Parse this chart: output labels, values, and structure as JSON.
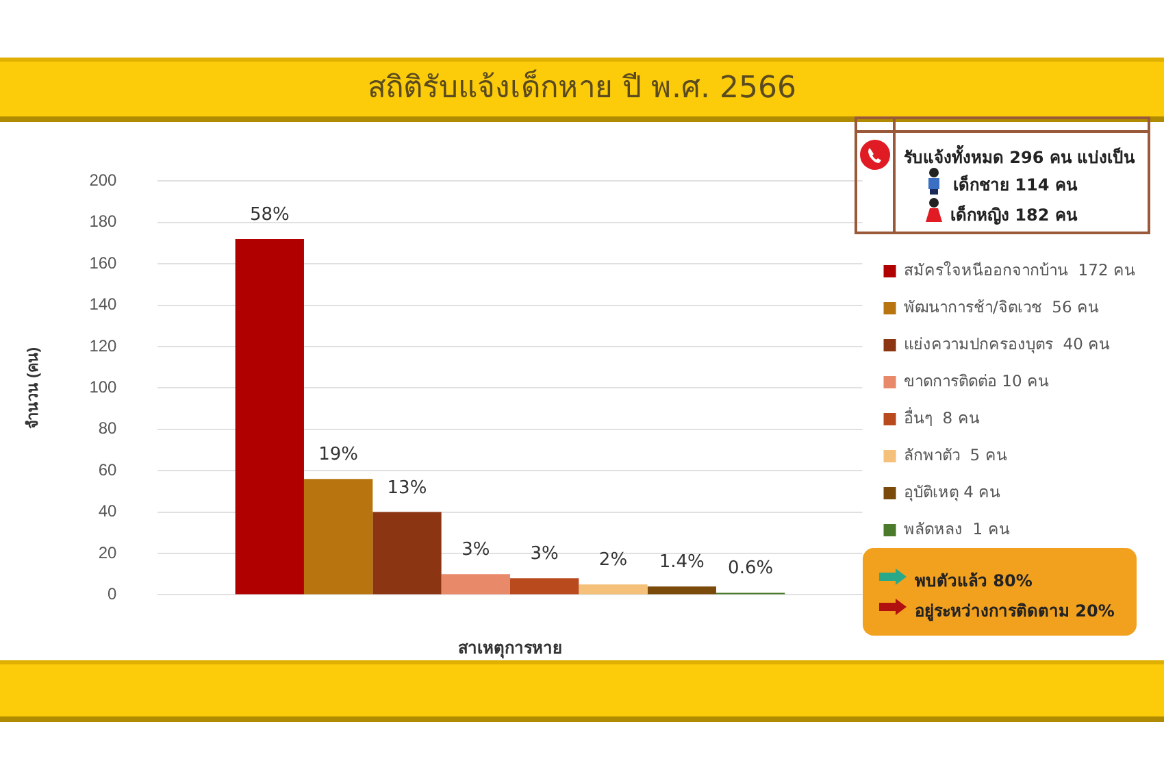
{
  "chart_data": {
    "type": "bar",
    "title": "สถิติรับแจ้งเด็กหาย ปี พ.ศ. 2566",
    "ylabel": "จำนวน (คน)",
    "xlabel": "สาเหตุการหาย",
    "categories": [
      null
    ],
    "series": [
      {
        "name": "สมัครใจหนีออกจากบ้าน  172 คน",
        "color": "#b00000",
        "values": [
          172
        ]
      },
      {
        "name": "พัฒนาการช้า/จิตเวช  56 คน",
        "color": "#b8750f",
        "values": [
          56
        ]
      },
      {
        "name": "แย่งความปกครองบุตร  40 คน",
        "color": "#8b3512",
        "values": [
          40
        ]
      },
      {
        "name": "ขาดการติดต่อ 10 คน",
        "color": "#e8896a",
        "values": [
          10
        ]
      },
      {
        "name": "อื่นๆ  8 คน",
        "color": "#b84a1e",
        "values": [
          8
        ]
      },
      {
        "name": "ลักพาตัว  5 คน",
        "color": "#f5c07a",
        "values": [
          5
        ]
      },
      {
        "name": "อุบัติเหตุ 4 คน",
        "color": "#7a4a0a",
        "values": [
          4
        ]
      },
      {
        "name": "พลัดหลง  1 คน",
        "color": "#4a7a2a",
        "values": [
          1
        ]
      }
    ],
    "ylim": [
      0,
      200
    ],
    "yticks": [
      0,
      20,
      40,
      60,
      80,
      100,
      120,
      140,
      160,
      180,
      200
    ],
    "grid": "y",
    "legend": "right",
    "annotations": [
      "รับแจ้งทั้งหมด 296 คน แบ่งเป็น",
      "เด็กชาย 114 คน",
      "เด็กหญิง 182 คน",
      "พบตัวแล้ว 80%",
      "อยู่ระหว่างการติดตาม 20%",
      {
        "text": "58%",
        "y": 172
      },
      {
        "text": "19%",
        "y": 56
      },
      {
        "text": "13%",
        "y": 40
      },
      {
        "text": "3%",
        "y": 10
      },
      {
        "text": "3%",
        "y": 8
      },
      {
        "text": "2%",
        "y": 5
      },
      {
        "text": "1.4%",
        "y": 4
      },
      {
        "text": "0.6%",
        "y": 1
      }
    ]
  }
}
